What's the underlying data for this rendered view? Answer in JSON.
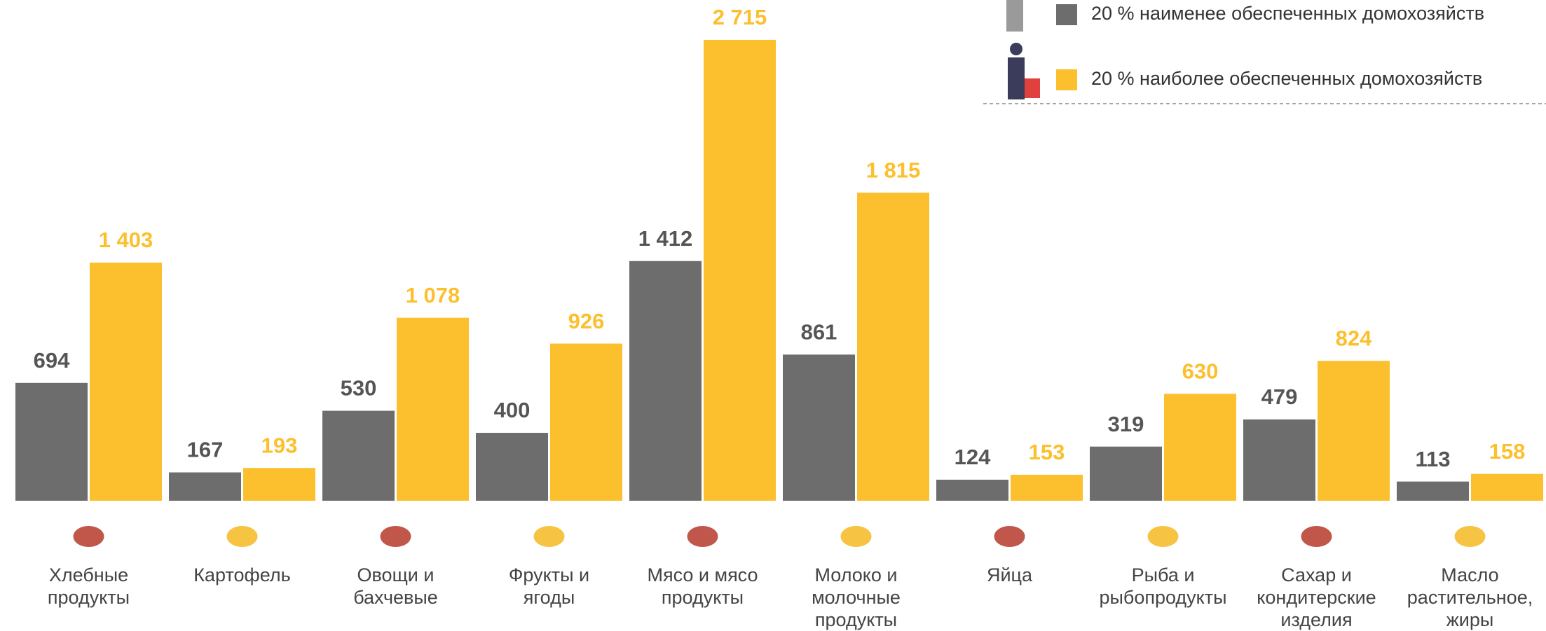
{
  "chart_data": {
    "type": "bar",
    "categories": [
      [
        "Хлебные",
        "продукты"
      ],
      [
        "Картофель"
      ],
      [
        "Овощи и",
        "бахчевые"
      ],
      [
        "Фрукты и",
        "ягоды"
      ],
      [
        "Мясо и мясо",
        "продукты"
      ],
      [
        "Молоко и",
        "молочные",
        "продукты"
      ],
      [
        "Яйца"
      ],
      [
        "Рыба и",
        "рыбопродукты"
      ],
      [
        "Сахар и",
        "кондитерские",
        "изделия"
      ],
      [
        "Масло",
        "растительное,",
        "жиры"
      ]
    ],
    "series": [
      {
        "name": "20 % наименее обеспеченных домохозяйств",
        "color": "#6d6d6d",
        "values": [
          694,
          167,
          530,
          400,
          1412,
          861,
          124,
          319,
          479,
          113
        ],
        "value_labels": [
          "694",
          "167",
          "530",
          "400",
          "1 412",
          "861",
          "124",
          "319",
          "479",
          "113"
        ]
      },
      {
        "name": "20 % наиболее обеспеченных домохозяйств",
        "color": "#fcc02e",
        "values": [
          1403,
          193,
          1078,
          926,
          2715,
          1815,
          153,
          630,
          824,
          158
        ],
        "value_labels": [
          "1 403",
          "193",
          "1 078",
          "926",
          "2 715",
          "1 815",
          "153",
          "630",
          "824",
          "158"
        ]
      }
    ],
    "ylim": [
      0,
      2950
    ],
    "grid": false
  }
}
